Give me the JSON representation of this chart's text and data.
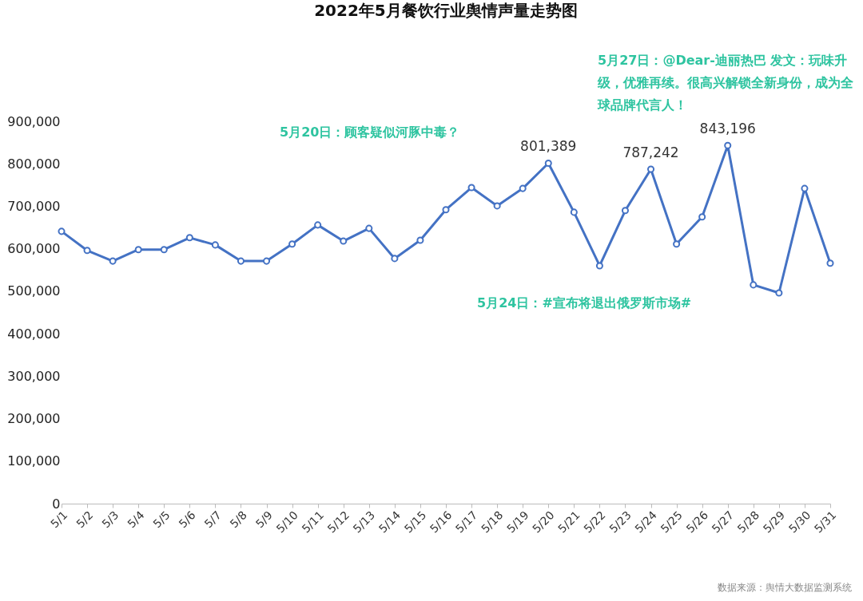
{
  "chart_data": {
    "type": "line",
    "title": "2022年5月餐饮行业舆情声量走势图",
    "categories": [
      "5/1",
      "5/2",
      "5/3",
      "5/4",
      "5/5",
      "5/6",
      "5/7",
      "5/8",
      "5/9",
      "5/10",
      "5/11",
      "5/12",
      "5/13",
      "5/14",
      "5/15",
      "5/16",
      "5/17",
      "5/18",
      "5/19",
      "5/20",
      "5/21",
      "5/22",
      "5/23",
      "5/24",
      "5/25",
      "5/26",
      "5/27",
      "5/28",
      "5/29",
      "5/30",
      "5/31"
    ],
    "series": [
      {
        "color": "#4472c4",
        "values": [
          641000,
          596000,
          571000,
          598000,
          598000,
          626000,
          609000,
          571000,
          571000,
          611000,
          656000,
          618000,
          648000,
          577000,
          620000,
          692000,
          744000,
          701000,
          742000,
          801389,
          686000,
          560000,
          690000,
          787242,
          611000,
          675000,
          843196,
          515000,
          496000,
          742000,
          566000
        ],
        "value_labels": [
          null,
          null,
          null,
          null,
          null,
          null,
          null,
          null,
          null,
          null,
          null,
          null,
          null,
          null,
          null,
          null,
          null,
          null,
          null,
          "801,389",
          null,
          null,
          null,
          "787,242",
          null,
          null,
          "843,196",
          null,
          null,
          null,
          null
        ]
      }
    ],
    "ylim": [
      0,
      900000
    ],
    "yticks": [
      0,
      {
        "value": 100000,
        "label": "100,000"
      },
      {
        "value": 200000,
        "label": "200,000"
      },
      {
        "value": 300000,
        "label": "300,000"
      },
      {
        "value": 400000,
        "label": "400,000"
      },
      {
        "value": 500000,
        "label": "500,000"
      },
      {
        "value": 600000,
        "label": "600,000"
      },
      {
        "value": 700000,
        "label": "700,000"
      },
      {
        "value": 800000,
        "label": "800,000"
      },
      {
        "value": 900000,
        "label": "900,000"
      }
    ],
    "grid": false,
    "legend": false,
    "marker": "circle",
    "line_style": "solid",
    "annotations": [
      "5月20日：顾客疑似河豚中毒？",
      "5月27日：@Dear-迪丽热巴 发文：玩味升级，优雅再续。很高兴解锁全新身份，成为全球品牌代言人！",
      "5月24日：#宣布将退出俄罗斯市场#",
      "数据来源：舆情大数据监测系统"
    ]
  }
}
